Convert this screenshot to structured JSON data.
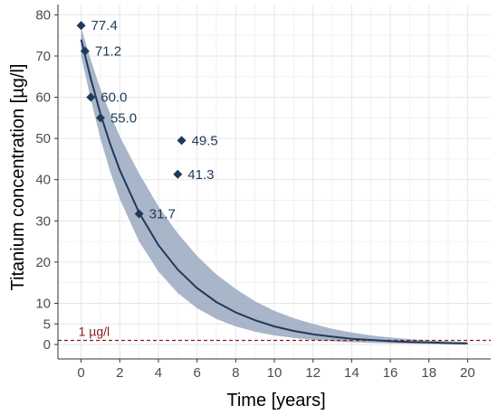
{
  "chart_data": {
    "type": "scatter",
    "title": "",
    "xlabel": "Time [years]",
    "ylabel": "Titanium concentration [µg/l]",
    "xlim": [
      -1.2,
      21.2
    ],
    "ylim": [
      -3.5,
      82.5
    ],
    "x_ticks": [
      0,
      2,
      4,
      6,
      8,
      10,
      12,
      14,
      16,
      18,
      20
    ],
    "y_ticks": [
      0,
      5,
      10,
      20,
      30,
      40,
      50,
      60,
      70,
      80
    ],
    "grid": true,
    "points": [
      {
        "x": 0.0,
        "y": 77.4,
        "label": "77.4"
      },
      {
        "x": 0.2,
        "y": 71.2,
        "label": "71.2"
      },
      {
        "x": 0.5,
        "y": 60.0,
        "label": "60.0"
      },
      {
        "x": 1.0,
        "y": 55.0,
        "label": "55.0"
      },
      {
        "x": 3.0,
        "y": 31.7,
        "label": "31.7"
      },
      {
        "x": 5.2,
        "y": 49.5,
        "label": "49.5"
      },
      {
        "x": 5.0,
        "y": 41.3,
        "label": "41.3"
      }
    ],
    "fit_curve": {
      "x": [
        0,
        0.5,
        1,
        1.5,
        2,
        3,
        4,
        5,
        6,
        7,
        8,
        9,
        10,
        11,
        12,
        13,
        14,
        15,
        16,
        17,
        18,
        19,
        20
      ],
      "y": [
        74,
        64.5,
        56.0,
        48.7,
        42.3,
        32.0,
        24.1,
        18.2,
        13.7,
        10.3,
        7.8,
        5.9,
        4.4,
        3.3,
        2.5,
        1.9,
        1.4,
        1.1,
        0.8,
        0.6,
        0.5,
        0.35,
        0.26
      ],
      "lower": [
        70,
        59.5,
        50.0,
        42.0,
        35.3,
        25.0,
        17.7,
        12.5,
        8.8,
        6.2,
        4.4,
        3.1,
        2.2,
        1.6,
        1.1,
        0.8,
        0.55,
        0.4,
        0.3,
        0.2,
        0.15,
        0.1,
        0.05
      ],
      "upper": [
        77,
        69.0,
        62.0,
        56.0,
        50.5,
        41.5,
        33.5,
        27.0,
        21.5,
        17.0,
        13.5,
        10.5,
        8.2,
        6.4,
        5.0,
        3.8,
        2.9,
        2.2,
        1.7,
        1.3,
        1.0,
        0.8,
        0.6
      ]
    },
    "reference_line": {
      "y": 1,
      "label": "1 µg/l",
      "color": "#8b1a1a"
    },
    "colors": {
      "points": "#1f3a5a",
      "line": "#1f3a5a",
      "band": "#9aa8bf",
      "grid": "#e6e6e6",
      "axis": "#333333"
    }
  }
}
